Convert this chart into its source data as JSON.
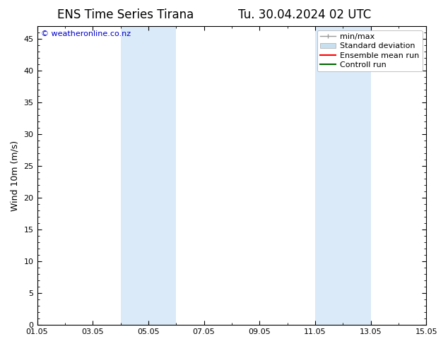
{
  "title_left": "ENS Time Series Tirana",
  "title_right": "Tu. 30.04.2024 02 UTC",
  "ylabel": "Wind 10m (m/s)",
  "watermark": "© weatheronline.co.nz",
  "xtick_labels": [
    "01.05",
    "03.05",
    "05.05",
    "07.05",
    "09.05",
    "11.05",
    "13.05",
    "15.05"
  ],
  "xtick_positions": [
    0,
    2,
    4,
    6,
    8,
    10,
    12,
    14
  ],
  "ylim": [
    0,
    47
  ],
  "ytick_positions": [
    0,
    5,
    10,
    15,
    20,
    25,
    30,
    35,
    40,
    45
  ],
  "ytick_labels": [
    "0",
    "5",
    "10",
    "15",
    "20",
    "25",
    "30",
    "35",
    "40",
    "45"
  ],
  "shaded_regions": [
    {
      "xstart": 3.0,
      "xend": 5.0
    },
    {
      "xstart": 10.0,
      "xend": 12.0
    }
  ],
  "shaded_color": "#daeaf8",
  "background_color": "#ffffff",
  "legend_items": [
    {
      "label": "min/max",
      "color": "#999999"
    },
    {
      "label": "Standard deviation",
      "color": "#c8dff0"
    },
    {
      "label": "Ensemble mean run",
      "color": "#ff0000"
    },
    {
      "label": "Controll run",
      "color": "#006600"
    }
  ],
  "title_fontsize": 12,
  "label_fontsize": 9,
  "tick_fontsize": 8,
  "watermark_color": "#0000cc",
  "watermark_fontsize": 8
}
